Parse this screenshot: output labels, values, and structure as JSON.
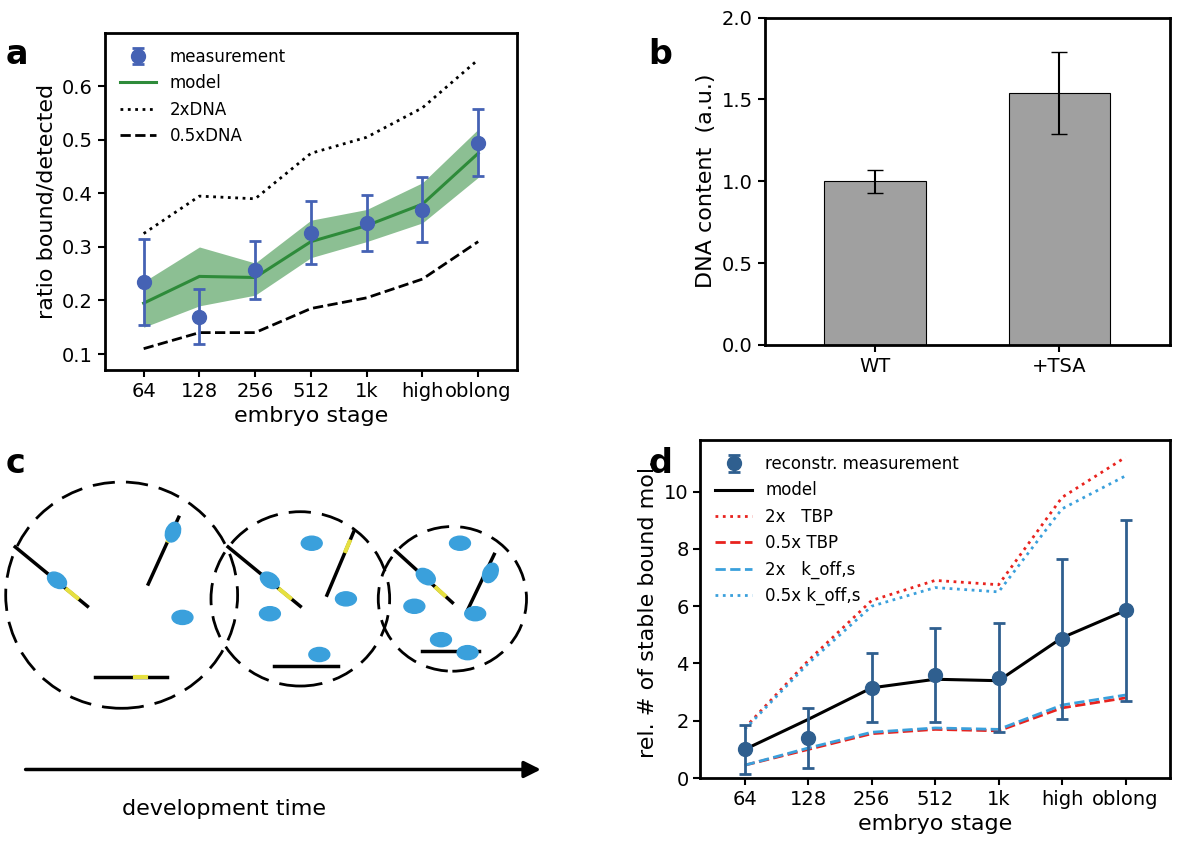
{
  "chart_data": [
    {
      "panel": "a",
      "type": "line",
      "xlabel": "embryo stage",
      "ylabel": "ratio bound/detected",
      "categories": [
        "64",
        "128",
        "256",
        "512",
        "1k",
        "high",
        "oblong"
      ],
      "ylim": [
        0.07,
        0.7
      ],
      "yticks": [
        0.1,
        0.2,
        0.3,
        0.4,
        0.5,
        0.6
      ],
      "legend": "upper left",
      "series": [
        {
          "name": "measurement",
          "type": "scatter",
          "color": "#4562b4",
          "marker": "o",
          "values": [
            0.235,
            0.17,
            0.257,
            0.327,
            0.345,
            0.37,
            0.495
          ],
          "errors": [
            0.08,
            0.052,
            0.055,
            0.058,
            0.052,
            0.06,
            0.063
          ]
        },
        {
          "name": "model",
          "type": "line",
          "color": "#2e8b3a",
          "line_style": "solid",
          "values": [
            0.195,
            0.245,
            0.243,
            0.31,
            0.34,
            0.38,
            0.475
          ],
          "band_lower": [
            0.15,
            0.19,
            0.21,
            0.28,
            0.31,
            0.345,
            0.43
          ],
          "band_upper": [
            0.235,
            0.3,
            0.27,
            0.35,
            0.37,
            0.42,
            0.52
          ]
        },
        {
          "name": "2xDNA",
          "type": "line",
          "color": "#000000",
          "line_style": "dotted",
          "values": [
            0.325,
            0.395,
            0.39,
            0.475,
            0.505,
            0.56,
            0.65
          ]
        },
        {
          "name": "0.5xDNA",
          "type": "line",
          "color": "#000000",
          "line_style": "dashed",
          "values": [
            0.11,
            0.14,
            0.14,
            0.185,
            0.205,
            0.24,
            0.31
          ]
        }
      ]
    },
    {
      "panel": "b",
      "type": "bar",
      "ylabel": "DNA content  (a.u.)",
      "categories": [
        "WT",
        "+TSA"
      ],
      "values": [
        1.0,
        1.54
      ],
      "errors": [
        0.07,
        0.25
      ],
      "color": "#a0a0a0",
      "ylim": [
        0.0,
        2.0
      ],
      "yticks": [
        0.0,
        0.5,
        1.0,
        1.5,
        2.0
      ]
    },
    {
      "panel": "d",
      "type": "line",
      "xlabel": "embryo stage",
      "ylabel": "rel. # of stable bound mol.",
      "categories": [
        "64",
        "128",
        "256",
        "512",
        "1k",
        "high",
        "oblong"
      ],
      "ylim": [
        0,
        11.8
      ],
      "yticks": [
        0,
        2,
        4,
        6,
        8,
        10
      ],
      "legend": "upper left",
      "series": [
        {
          "name": "reconstr. measurement",
          "type": "scatter",
          "color": "#2f5f8f",
          "marker": "o",
          "values": [
            1.0,
            1.4,
            3.15,
            3.6,
            3.5,
            4.85,
            5.85
          ],
          "errors": [
            0.85,
            1.05,
            1.2,
            1.65,
            1.9,
            2.8,
            3.15
          ]
        },
        {
          "name": "model",
          "type": "line",
          "color": "#000000",
          "line_style": "solid",
          "values": [
            1.0,
            2.05,
            3.15,
            3.45,
            3.4,
            4.9,
            5.85
          ]
        },
        {
          "name": "2x   TBP",
          "type": "line",
          "color": "#e8231e",
          "line_style": "dotted",
          "values": [
            1.75,
            4.1,
            6.2,
            6.9,
            6.75,
            9.8,
            11.2
          ]
        },
        {
          "name": "0.5x TBP",
          "type": "line",
          "color": "#e8231e",
          "line_style": "dashed",
          "values": [
            0.45,
            1.0,
            1.55,
            1.7,
            1.65,
            2.45,
            2.8
          ]
        },
        {
          "name": "2x   k_off,s",
          "type": "line",
          "color": "#3aa0dc",
          "line_style": "dashed",
          "values": [
            0.45,
            1.05,
            1.6,
            1.75,
            1.7,
            2.55,
            2.9
          ]
        },
        {
          "name": "0.5x k_off,s",
          "type": "line",
          "color": "#3aa0dc",
          "line_style": "dotted",
          "values": [
            1.7,
            4.0,
            6.0,
            6.65,
            6.5,
            9.4,
            10.55
          ]
        }
      ]
    }
  ],
  "diagram": {
    "panel": "c",
    "label": "development time"
  }
}
